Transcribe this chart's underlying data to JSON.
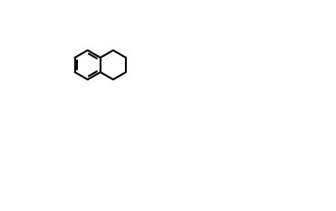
{
  "bg_color": "#ffffff",
  "line_color": "#000000",
  "line_width": 1.5,
  "figsize": [
    3.71,
    2.34
  ],
  "dpi": 100
}
